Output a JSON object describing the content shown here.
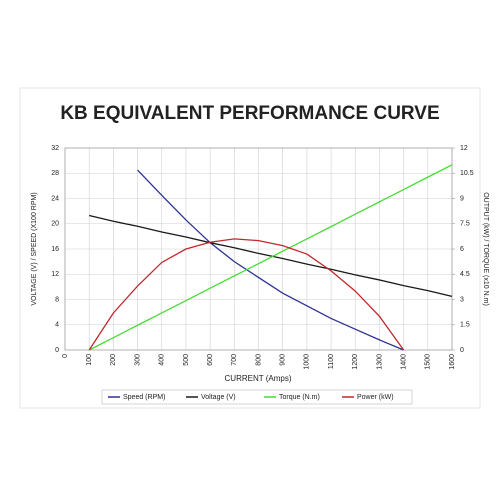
{
  "chart_data": {
    "type": "line",
    "title": "KB EQUIVALENT PERFORMANCE CURVE",
    "x_label": "CURRENT (Amps)",
    "y_label": "VOLTAGE (V) / SPEED (X100 RPM)",
    "y2_label": "OUTPUT (kW) / TORQUE (x10 N.m)",
    "x": [
      100,
      200,
      300,
      400,
      500,
      600,
      700,
      800,
      900,
      1000,
      1100,
      1200,
      1300,
      1400,
      1500,
      1600
    ],
    "xlim": [
      0,
      1600
    ],
    "xticks": [
      0,
      100,
      200,
      300,
      400,
      500,
      600,
      700,
      800,
      900,
      1000,
      1100,
      1200,
      1300,
      1400,
      1500,
      1600
    ],
    "ylim": [
      0,
      32
    ],
    "yticks": [
      0,
      4,
      8,
      12,
      16,
      20,
      24,
      28,
      32
    ],
    "y2lim": [
      0,
      12
    ],
    "y2ticks": [
      0,
      1.5,
      3,
      4.5,
      6,
      7.5,
      9,
      10.5,
      12
    ],
    "grid": true,
    "legend": "bottom",
    "series": [
      {
        "name": "Speed (RPM)",
        "color": "#2e3192",
        "values": [
          null,
          null,
          28.5,
          24.5,
          20.6,
          17,
          14,
          11.5,
          9,
          7,
          5,
          3.3,
          1.6,
          0,
          null,
          null
        ]
      },
      {
        "name": "Voltage (V)",
        "color": "#1a1a1a",
        "values": [
          21.3,
          20.4,
          19.6,
          18.7,
          17.9,
          17.0,
          16.2,
          15.3,
          14.5,
          13.6,
          12.8,
          11.9,
          11.1,
          10.2,
          9.4,
          8.5
        ]
      },
      {
        "name": "Torque (N.m)",
        "color": "#44dd33",
        "axis": "y2",
        "values": [
          0,
          0.73,
          1.47,
          2.2,
          2.93,
          3.67,
          4.4,
          5.13,
          5.87,
          6.6,
          7.33,
          8.07,
          8.8,
          9.53,
          10.27,
          11
        ]
      },
      {
        "name": "Power (kW)",
        "color": "#c0282d",
        "axis": "y2",
        "values": [
          0,
          2.2,
          3.8,
          5.2,
          6.0,
          6.4,
          6.6,
          6.5,
          6.2,
          5.7,
          4.7,
          3.5,
          2.0,
          0,
          null,
          null
        ]
      }
    ]
  }
}
